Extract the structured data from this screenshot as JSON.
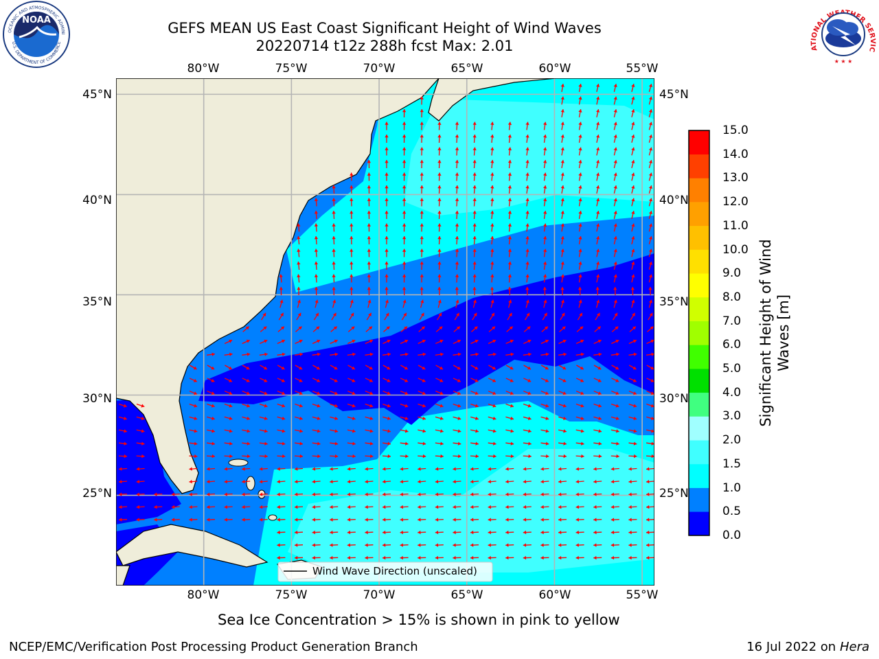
{
  "header": {
    "title_line1": "GEFS MEAN US East Coast Significant Height of Wind Waves",
    "title_line2": "20220714 t12z 288h fcst   Max: 2.01"
  },
  "logos": {
    "noaa_text": "NOAA",
    "noaa_ring_top": "NATIONAL OCEANIC AND ATMOSPHERIC ADMINISTRATION",
    "noaa_ring_bottom": "U.S. DEPARTMENT OF COMMERCE",
    "nws_ring": "NATIONAL WEATHER SERVICE"
  },
  "map": {
    "lon_labels": [
      "80°W",
      "75°W",
      "70°W",
      "65°W",
      "60°W",
      "55°W"
    ],
    "lat_labels": [
      "45°N",
      "40°N",
      "35°N",
      "30°N",
      "25°N"
    ],
    "extent": {
      "lon_min": -85,
      "lon_max": -54.3,
      "lat_min": 20.5,
      "lat_max": 45.8
    },
    "gridline_lons": [
      -80,
      -75,
      -70,
      -65,
      -60,
      -55
    ],
    "gridline_lats": [
      45,
      40,
      35,
      30,
      25
    ],
    "legend_label": "Wind Wave Direction (unscaled)",
    "colors": {
      "land": "#efedda",
      "arrow": "#ff0000",
      "grid": "#b4b4b4"
    }
  },
  "colorbar": {
    "label_line1": "Significant Height of Wind",
    "label_line2": "Waves [m]",
    "levels": [
      "0.0",
      "0.5",
      "1.0",
      "1.5",
      "2.0",
      "3.0",
      "4.0",
      "5.0",
      "6.0",
      "7.0",
      "8.0",
      "9.0",
      "10.0",
      "11.0",
      "12.0",
      "13.0",
      "14.0",
      "15.0"
    ],
    "colors": [
      "#0000ff",
      "#0080ff",
      "#00ffff",
      "#40ffff",
      "#a0ffff",
      "#40ff80",
      "#00e000",
      "#40ff00",
      "#a0ff00",
      "#d0ff00",
      "#ffff00",
      "#ffe000",
      "#ffc000",
      "#ffa000",
      "#ff8000",
      "#ff4000",
      "#ff0000"
    ]
  },
  "footer": {
    "note": "Sea Ice Concentration > 15% is shown in pink to yellow",
    "branch": "NCEP/EMC/Verification Post Processing Product Generation Branch",
    "date": "16 Jul 2022 on",
    "machine": "Hera"
  }
}
